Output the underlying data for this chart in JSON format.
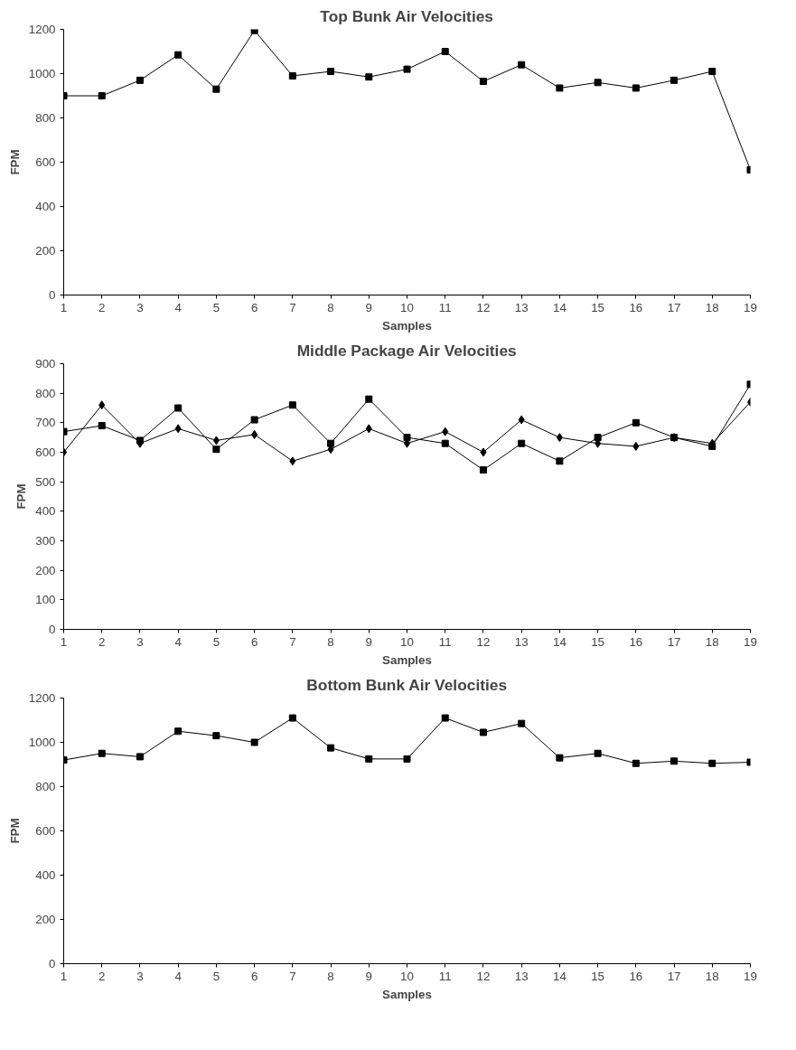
{
  "chart_data": [
    {
      "type": "line",
      "title": "Top Bunk Air Velocities",
      "xlabel": "Samples",
      "ylabel": "FPM",
      "x": [
        1,
        2,
        3,
        4,
        5,
        6,
        7,
        8,
        9,
        10,
        11,
        12,
        13,
        14,
        15,
        16,
        17,
        18,
        19
      ],
      "xlim": [
        1,
        19
      ],
      "xticks": [
        1,
        2,
        3,
        4,
        5,
        6,
        7,
        8,
        9,
        10,
        11,
        12,
        13,
        14,
        15,
        16,
        17,
        18,
        19
      ],
      "ylim": [
        0,
        1200
      ],
      "yticks": [
        0,
        200,
        400,
        600,
        800,
        1000,
        1200
      ],
      "grid": false,
      "series": [
        {
          "color": "#000000",
          "marker": "square",
          "values": [
            900,
            900,
            970,
            1085,
            930,
            1195,
            990,
            1010,
            985,
            1020,
            1100,
            965,
            1040,
            935,
            960,
            935,
            970,
            1010,
            565
          ]
        }
      ]
    },
    {
      "type": "line",
      "title": "Middle Package Air Velocities",
      "xlabel": "Samples",
      "ylabel": "FPM",
      "x": [
        1,
        2,
        3,
        4,
        5,
        6,
        7,
        8,
        9,
        10,
        11,
        12,
        13,
        14,
        15,
        16,
        17,
        18,
        19
      ],
      "xlim": [
        1,
        19
      ],
      "xticks": [
        1,
        2,
        3,
        4,
        5,
        6,
        7,
        8,
        9,
        10,
        11,
        12,
        13,
        14,
        15,
        16,
        17,
        18,
        19
      ],
      "ylim": [
        0,
        900
      ],
      "yticks": [
        0,
        100,
        200,
        300,
        400,
        500,
        600,
        700,
        800,
        900
      ],
      "grid": false,
      "series": [
        {
          "color": "#000000",
          "marker": "diamond",
          "values": [
            600,
            760,
            630,
            680,
            640,
            660,
            570,
            610,
            680,
            630,
            670,
            600,
            710,
            650,
            630,
            620,
            650,
            630,
            770
          ]
        },
        {
          "color": "#000000",
          "marker": "square",
          "values": [
            670,
            690,
            640,
            750,
            610,
            710,
            760,
            630,
            780,
            650,
            630,
            540,
            630,
            570,
            650,
            700,
            650,
            620,
            830
          ]
        }
      ]
    },
    {
      "type": "line",
      "title": "Bottom Bunk Air Velocities",
      "xlabel": "Samples",
      "ylabel": "FPM",
      "x": [
        1,
        2,
        3,
        4,
        5,
        6,
        7,
        8,
        9,
        10,
        11,
        12,
        13,
        14,
        15,
        16,
        17,
        18,
        19
      ],
      "xlim": [
        1,
        19
      ],
      "xticks": [
        1,
        2,
        3,
        4,
        5,
        6,
        7,
        8,
        9,
        10,
        11,
        12,
        13,
        14,
        15,
        16,
        17,
        18,
        19
      ],
      "ylim": [
        0,
        1200
      ],
      "yticks": [
        0,
        200,
        400,
        600,
        800,
        1000,
        1200
      ],
      "grid": false,
      "series": [
        {
          "color": "#000000",
          "marker": "square",
          "values": [
            920,
            950,
            935,
            1050,
            1030,
            1000,
            1110,
            975,
            925,
            925,
            1110,
            1045,
            1085,
            930,
            950,
            905,
            915,
            905,
            910
          ]
        }
      ]
    }
  ]
}
